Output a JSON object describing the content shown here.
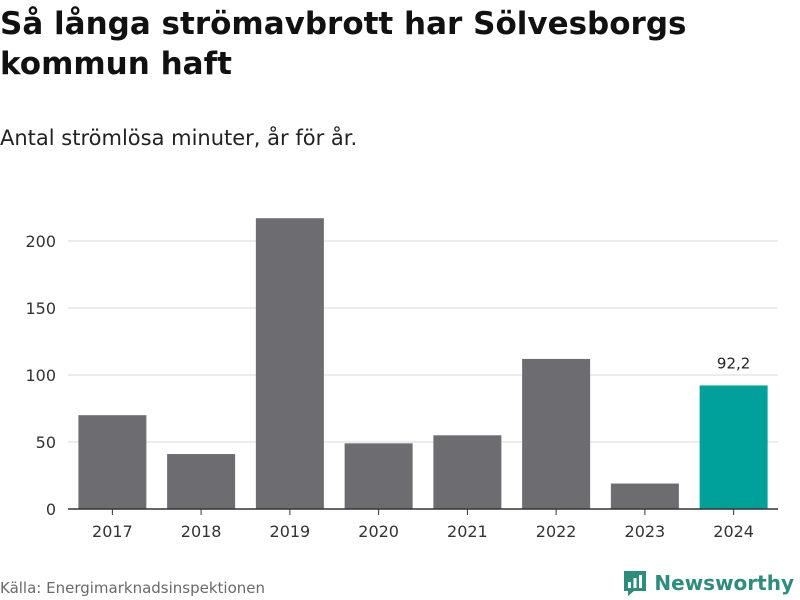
{
  "header": {
    "title": "Så långa strömavbrott har Sölvesborgs kommun haft",
    "subtitle": "Antal strömlösa minuter, år för år."
  },
  "footer": {
    "source": "Källa: Energimarknadsinspektionen",
    "brand": "Newsworthy"
  },
  "colors": {
    "bar": "#6d6c71",
    "highlight": "#00a19a",
    "grid": "#d9d9d9",
    "axis": "#333333",
    "brand": "#2e8c7c"
  },
  "chart_data": {
    "type": "bar",
    "title": "Så långa strömavbrott har Sölvesborgs kommun haft",
    "subtitle": "Antal strömlösa minuter, år för år.",
    "categories": [
      "2017",
      "2018",
      "2019",
      "2020",
      "2021",
      "2022",
      "2023",
      "2024"
    ],
    "values": [
      70,
      41,
      217,
      49,
      55,
      112,
      19,
      92.2
    ],
    "highlight_index": 7,
    "data_labels": [
      {
        "index": 7,
        "text": "92,2"
      }
    ],
    "yticks": [
      0,
      50,
      100,
      150,
      200
    ],
    "ylim": [
      0,
      225
    ],
    "grid": true,
    "legend": "none"
  }
}
